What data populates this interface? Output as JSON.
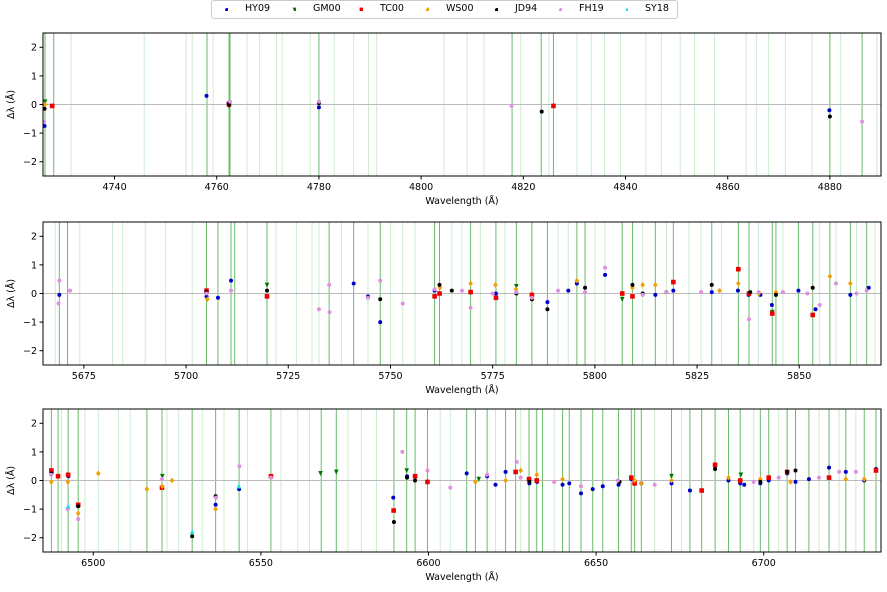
{
  "legend": [
    {
      "key": "HY09",
      "label": "HY09",
      "color": "#0000cc",
      "marker": "circle"
    },
    {
      "key": "GM00",
      "label": "GM00",
      "color": "#007700",
      "marker": "triangle-down"
    },
    {
      "key": "TC00",
      "label": "TC00",
      "color": "#ee0000",
      "marker": "square"
    },
    {
      "key": "WS00",
      "label": "WS00",
      "color": "#f0a000",
      "marker": "diamond"
    },
    {
      "key": "JD94",
      "label": "JD94",
      "color": "#000000",
      "marker": "circle"
    },
    {
      "key": "FH19",
      "label": "FH19",
      "color": "#e090e0",
      "marker": "circle"
    },
    {
      "key": "SY18",
      "label": "SY18",
      "color": "#22e0e0",
      "marker": "triangle-up"
    }
  ],
  "chart_data": [
    {
      "type": "scatter",
      "title": "",
      "xlabel": "Wavelength (Å)",
      "ylabel": "Δλ (Å)",
      "xlim": [
        4726,
        4890
      ],
      "ylim": [
        -2.5,
        2.5
      ],
      "xticks": [
        4740,
        4760,
        4780,
        4800,
        4820,
        4840,
        4860,
        4880
      ],
      "yticks": [
        -2,
        -1,
        0,
        1,
        2
      ],
      "strong_lines": [
        4726.4,
        4728.1,
        4758.1,
        4762.4,
        4762.6,
        4780.0,
        4817.8,
        4823.5,
        4825.9,
        4880.0,
        4886.3
      ],
      "faint_lines": [
        4731.5,
        4745.8,
        4754.0,
        4755.2,
        4759.3,
        4765.9,
        4768.4,
        4771.7,
        4772.8,
        4778.3,
        4783.0,
        4786.8,
        4789.7,
        4791.3,
        4804.5,
        4809.0,
        4812.3,
        4819.5,
        4825.0,
        4830.5,
        4833.3,
        4835.9,
        4839.0,
        4844.0,
        4847.0,
        4850.7,
        4853.5,
        4857.4,
        4863.6,
        4865.6,
        4868.0,
        4871.3,
        4876.5,
        4882.1,
        4889.2
      ],
      "series": [
        {
          "name": "HY09",
          "x": [
            4726.3,
            4758.0,
            4762.3,
            4780.0,
            4879.9
          ],
          "y": [
            -0.75,
            0.3,
            0.05,
            -0.1,
            -0.2
          ]
        },
        {
          "name": "GM00",
          "x": [
            4726.4,
            4762.4
          ],
          "y": [
            0.1,
            -0.05
          ]
        },
        {
          "name": "TC00",
          "x": [
            4727.8,
            4762.4,
            4825.9
          ],
          "y": [
            -0.05,
            0.0,
            -0.05
          ]
        },
        {
          "name": "WS00",
          "x": [
            4726.4
          ],
          "y": [
            0.0
          ]
        },
        {
          "name": "JD94",
          "x": [
            4726.3,
            4762.4,
            4780.0,
            4823.6,
            4880.0
          ],
          "y": [
            -0.15,
            0.0,
            0.05,
            -0.25,
            -0.42
          ]
        },
        {
          "name": "FH19",
          "x": [
            4726.2,
            4762.6,
            4780.0,
            4817.7,
            4886.3
          ],
          "y": [
            -0.6,
            0.1,
            0.1,
            -0.05,
            -0.6
          ]
        },
        {
          "name": "SY18",
          "x": [],
          "y": []
        }
      ]
    },
    {
      "type": "scatter",
      "title": "",
      "xlabel": "Wavelength (Å)",
      "ylabel": "Δλ (Å)",
      "xlim": [
        5665,
        5870
      ],
      "ylim": [
        -2.5,
        2.5
      ],
      "xticks": [
        5675,
        5700,
        5725,
        5750,
        5775,
        5800,
        5825,
        5850
      ],
      "yticks": [
        -2,
        -1,
        0,
        1,
        2
      ],
      "strong_lines": [
        5669.0,
        5671.0,
        5705.0,
        5707.8,
        5711.0,
        5711.9,
        5719.8,
        5735.0,
        5741.0,
        5747.5,
        5760.8,
        5762.0,
        5769.6,
        5775.8,
        5780.8,
        5784.6,
        5788.4,
        5795.6,
        5797.6,
        5806.7,
        5809.2,
        5814.8,
        5819.2,
        5828.6,
        5835.1,
        5837.7,
        5843.4,
        5844.3,
        5849.8,
        5853.3,
        5857.5,
        5862.5,
        5866.5
      ],
      "faint_lines": [
        5668.0,
        5674.0,
        5682.0,
        5684.5,
        5690.0,
        5695.0,
        5701.5,
        5715.0,
        5722.0,
        5727.0,
        5730.8,
        5732.5,
        5738.0,
        5744.5,
        5750.0,
        5753.0,
        5756.0,
        5765.0,
        5767.5,
        5772.0,
        5778.0,
        5791.0,
        5793.5,
        5800.0,
        5802.5,
        5811.7,
        5817.5,
        5823.0,
        5826.0,
        5831.0,
        5840.0,
        5846.0,
        5855.0,
        5859.0,
        5864.0,
        5868.5
      ],
      "series": [
        {
          "name": "HY09",
          "x": [
            5669.0,
            5705.0,
            5707.8,
            5711.0,
            5741.0,
            5744.5,
            5747.5,
            5760.8,
            5769.6,
            5775.8,
            5784.6,
            5788.4,
            5793.5,
            5795.6,
            5802.5,
            5814.8,
            5819.2,
            5828.6,
            5835.0,
            5837.6,
            5840.5,
            5843.3,
            5849.8,
            5854.0,
            5862.5,
            5867.0
          ],
          "y": [
            -0.05,
            -0.1,
            -0.15,
            0.45,
            0.35,
            -0.1,
            -1.0,
            0.1,
            0.05,
            0.0,
            -0.1,
            -0.3,
            0.1,
            0.35,
            0.65,
            -0.05,
            0.1,
            0.05,
            0.1,
            -0.05,
            -0.05,
            -0.4,
            0.1,
            -0.55,
            -0.05,
            0.2
          ]
        },
        {
          "name": "GM00",
          "x": [
            5719.8,
            5780.8,
            5806.7,
            5843.4
          ],
          "y": [
            0.3,
            0.25,
            -0.2,
            -0.65
          ]
        },
        {
          "name": "TC00",
          "x": [
            5705.0,
            5719.8,
            5760.8,
            5762.0,
            5769.6,
            5775.8,
            5784.6,
            5806.7,
            5809.2,
            5819.2,
            5835.1,
            5837.7,
            5843.4,
            5853.3
          ],
          "y": [
            0.1,
            -0.1,
            -0.1,
            0.0,
            0.05,
            -0.15,
            -0.05,
            0.0,
            -0.1,
            0.4,
            0.85,
            0.0,
            -0.7,
            -0.75
          ]
        },
        {
          "name": "WS00",
          "x": [
            5705.2,
            5762.1,
            5769.6,
            5775.7,
            5780.7,
            5784.7,
            5795.6,
            5809.2,
            5811.7,
            5814.8,
            5830.5,
            5835.1,
            5840.1,
            5844.3,
            5857.5,
            5862.5
          ],
          "y": [
            -0.2,
            0.2,
            0.35,
            0.3,
            0.15,
            -0.2,
            0.45,
            0.2,
            0.3,
            0.3,
            0.1,
            0.35,
            0.0,
            0.05,
            0.6,
            0.35
          ]
        },
        {
          "name": "JD94",
          "x": [
            5705.0,
            5719.8,
            5747.5,
            5762.0,
            5765.0,
            5780.8,
            5784.6,
            5788.4,
            5797.6,
            5809.2,
            5811.7,
            5817.5,
            5828.6,
            5838.0,
            5844.3,
            5853.3
          ],
          "y": [
            0.05,
            0.1,
            -0.2,
            0.3,
            0.1,
            0.0,
            -0.2,
            -0.55,
            0.2,
            0.3,
            0.0,
            0.05,
            0.3,
            0.05,
            -0.05,
            0.2
          ]
        },
        {
          "name": "FH19",
          "x": [
            5669.0,
            5668.8,
            5671.6,
            5705.0,
            5711.0,
            5732.5,
            5735.0,
            5735.1,
            5744.5,
            5747.5,
            5753.0,
            5760.8,
            5767.5,
            5769.6,
            5775.0,
            5780.8,
            5784.6,
            5791.0,
            5797.6,
            5802.5,
            5811.7,
            5817.5,
            5826.0,
            5837.7,
            5840.1,
            5846.0,
            5852.0,
            5855.0,
            5859.0,
            5864.0,
            5866.5
          ],
          "y": [
            0.45,
            -0.35,
            0.1,
            0.0,
            0.1,
            -0.55,
            0.3,
            -0.65,
            -0.15,
            0.45,
            -0.35,
            0.15,
            0.1,
            -0.5,
            0.0,
            0.05,
            -0.15,
            0.1,
            0.05,
            0.9,
            -0.05,
            0.05,
            0.05,
            -0.9,
            0.05,
            0.05,
            0.0,
            -0.4,
            0.35,
            0.0,
            0.1
          ]
        },
        {
          "name": "SY18",
          "x": [],
          "y": []
        }
      ]
    },
    {
      "type": "scatter",
      "title": "",
      "xlabel": "Wavelength (Å)",
      "ylabel": "Δλ (Å)",
      "xlim": [
        6485,
        6735
      ],
      "ylim": [
        -2.5,
        2.5
      ],
      "xticks": [
        6500,
        6550,
        6600,
        6650,
        6700
      ],
      "yticks": [
        -2,
        -1,
        0,
        1,
        2
      ],
      "strong_lines": [
        6487.5,
        6489.5,
        6492.5,
        6495.5,
        6516.0,
        6520.5,
        6529.5,
        6536.5,
        6543.5,
        6553.0,
        6568.0,
        6572.5,
        6589.7,
        6593.5,
        6596.0,
        6599.7,
        6611.4,
        6614.0,
        6617.5,
        6623.0,
        6626.0,
        6630.0,
        6632.3,
        6634.0,
        6640.0,
        6642.0,
        6645.5,
        6649.0,
        6652.0,
        6656.7,
        6660.5,
        6661.5,
        6663.5,
        6672.5,
        6678.0,
        6681.5,
        6685.5,
        6689.5,
        6693.0,
        6699.0,
        6701.5,
        6707.0,
        6709.5,
        6713.5,
        6719.5,
        6724.5,
        6730.0,
        6733.5
      ],
      "faint_lines": [
        6490.5,
        6497.5,
        6501.5,
        6507.5,
        6511.0,
        6522.0,
        6525.5,
        6532.5,
        6539.0,
        6546.0,
        6556.0,
        6561.0,
        6564.5,
        6576.0,
        6580.0,
        6584.5,
        6603.5,
        6606.5,
        6620.0,
        6627.5,
        6637.5,
        6667.5,
        6675.5,
        6697.0,
        6704.5,
        6716.5,
        6722.5,
        6727.5
      ],
      "series": [
        {
          "name": "HY09",
          "x": [
            6487.6,
            6492.6,
            6536.5,
            6543.5,
            6589.5,
            6593.6,
            6611.4,
            6617.5,
            6620.0,
            6623.0,
            6630.1,
            6632.4,
            6640.0,
            6642.0,
            6645.5,
            6649.0,
            6652.0,
            6656.7,
            6660.5,
            6663.5,
            6672.5,
            6678.0,
            6685.5,
            6689.5,
            6693.0,
            6694.2,
            6699.0,
            6701.5,
            6707.0,
            6709.5,
            6713.5,
            6719.5,
            6724.5,
            6730.0,
            6733.5
          ],
          "y": [
            0.3,
            0.15,
            -0.85,
            -0.3,
            -0.6,
            0.15,
            0.25,
            0.15,
            -0.15,
            0.3,
            -0.1,
            -0.05,
            -0.15,
            -0.1,
            -0.45,
            -0.3,
            -0.2,
            -0.15,
            0.05,
            -0.1,
            -0.1,
            -0.35,
            0.5,
            0.0,
            -0.1,
            -0.15,
            -0.1,
            0.0,
            0.25,
            -0.05,
            0.05,
            0.45,
            0.3,
            0.0,
            0.4
          ]
        },
        {
          "name": "GM00",
          "x": [
            6520.6,
            6567.8,
            6572.5,
            6593.5,
            6615.0,
            6672.5,
            6693.2
          ],
          "y": [
            0.15,
            0.25,
            0.3,
            0.35,
            0.05,
            0.15,
            0.2
          ]
        },
        {
          "name": "TC00",
          "x": [
            6487.5,
            6489.5,
            6492.5,
            6495.5,
            6520.5,
            6553.0,
            6589.6,
            6596.0,
            6599.7,
            6626.0,
            6630.0,
            6632.3,
            6660.5,
            6661.5,
            6681.5,
            6685.5,
            6693.0,
            6701.5,
            6707.0,
            6719.5,
            6733.5
          ],
          "y": [
            0.35,
            0.15,
            0.2,
            -0.85,
            -0.25,
            0.15,
            -1.05,
            0.15,
            -0.05,
            0.3,
            0.05,
            0.0,
            0.1,
            -0.1,
            -0.35,
            0.55,
            0.0,
            0.1,
            0.3,
            0.1,
            0.35
          ]
        },
        {
          "name": "WS00",
          "x": [
            6487.5,
            6492.4,
            6495.5,
            6501.5,
            6516.0,
            6520.6,
            6523.5,
            6536.5,
            6614.0,
            6623.0,
            6627.5,
            6632.3,
            6640.0,
            6661.5,
            6663.5,
            6672.5,
            6689.5,
            6699.0,
            6708.0,
            6724.5,
            6730.0
          ],
          "y": [
            -0.05,
            -0.05,
            -1.15,
            0.25,
            -0.3,
            -0.2,
            0.0,
            -1.0,
            -0.05,
            0.0,
            0.35,
            0.2,
            0.05,
            0.0,
            -0.1,
            0.0,
            0.1,
            0.05,
            -0.05,
            0.05,
            0.05
          ]
        },
        {
          "name": "JD94",
          "x": [
            6487.5,
            6495.5,
            6529.5,
            6536.5,
            6589.7,
            6593.6,
            6596.0,
            6630.1,
            6657.0,
            6685.5,
            6699.0,
            6707.0,
            6709.5
          ],
          "y": [
            0.25,
            -0.9,
            -1.95,
            -0.55,
            -1.45,
            0.1,
            0.0,
            -0.05,
            -0.05,
            0.4,
            -0.05,
            0.3,
            0.35
          ]
        },
        {
          "name": "FH19",
          "x": [
            6487.4,
            6492.4,
            6495.5,
            6520.5,
            6536.6,
            6543.6,
            6553.0,
            6592.2,
            6599.7,
            6606.5,
            6617.5,
            6626.3,
            6627.5,
            6637.5,
            6645.5,
            6656.5,
            6667.5,
            6697.0,
            6704.5,
            6716.5,
            6722.5,
            6727.5
          ],
          "y": [
            0.2,
            -1.0,
            -1.35,
            0.05,
            -0.6,
            0.5,
            0.1,
            1.0,
            0.35,
            -0.25,
            0.2,
            0.65,
            0.1,
            -0.05,
            -0.2,
            0.0,
            -0.15,
            -0.05,
            0.1,
            0.1,
            0.3,
            0.3
          ]
        },
        {
          "name": "SY18",
          "x": [
            6492.5,
            6529.5,
            6543.4
          ],
          "y": [
            -0.9,
            -1.8,
            -0.2
          ]
        }
      ]
    }
  ]
}
